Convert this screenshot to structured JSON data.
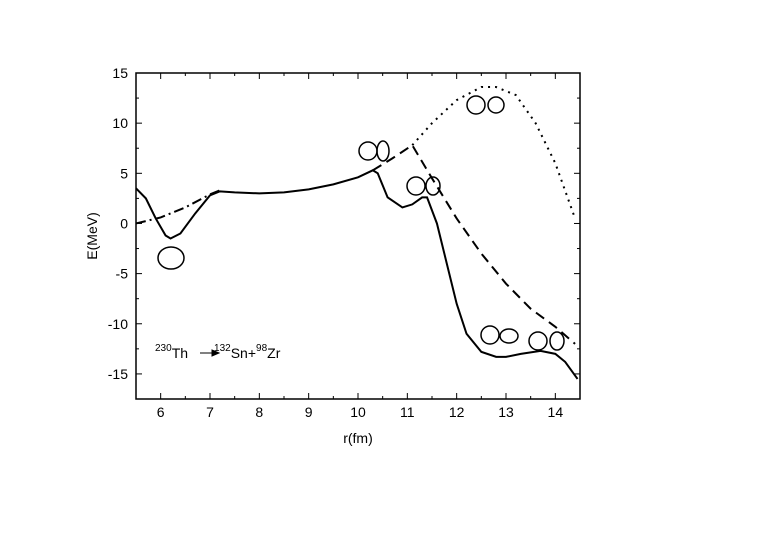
{
  "chart_data": {
    "type": "line",
    "x_label": "r(fm)",
    "y_label": "E(MeV)",
    "annotation": {
      "parent_mass": "230",
      "parent": "Th",
      "frag1_mass": "132",
      "frag1": "Sn+",
      "frag2_mass": "98",
      "frag2": "Zr"
    },
    "xlim": [
      5.5,
      14.5
    ],
    "xticks": [
      6,
      7,
      8,
      9,
      10,
      11,
      12,
      13,
      14
    ],
    "ylim": [
      -17.5,
      15
    ],
    "yticks": [
      -15,
      -10,
      -5,
      0,
      5,
      10,
      15
    ],
    "series": [
      {
        "style": "solid",
        "color": "#000000",
        "x": [
          5.5,
          5.7,
          5.9,
          6.1,
          6.2,
          6.4,
          6.7,
          7.0,
          7.2,
          7.5,
          8,
          8.5,
          9,
          9.5,
          10,
          10.3,
          10.4,
          10.6,
          10.9,
          11.1,
          11.3,
          11.4,
          11.6,
          11.8,
          12,
          12.2,
          12.5,
          12.8,
          13,
          13.3,
          13.7,
          14.0,
          14.2,
          14.45
        ],
        "values": [
          3.5,
          2.5,
          0.5,
          -1.2,
          -1.5,
          -1,
          1,
          2.8,
          3.2,
          3.1,
          3.0,
          3.1,
          3.4,
          3.9,
          4.6,
          5.3,
          5.0,
          2.6,
          1.6,
          1.9,
          2.6,
          2.6,
          0,
          -4,
          -8,
          -11,
          -12.8,
          -13.3,
          -13.3,
          -13.0,
          -12.7,
          -13,
          -13.8,
          -15.5
        ]
      },
      {
        "style": "dashed",
        "color": "#000000",
        "x": [
          10.3,
          10.7,
          11.1,
          11.5,
          12,
          12.5,
          13,
          13.5,
          14,
          14.4
        ],
        "values": [
          5.3,
          6.5,
          7.8,
          4.5,
          0.5,
          -3,
          -6,
          -8.5,
          -10.3,
          -12
        ]
      },
      {
        "style": "dotted",
        "color": "#000000",
        "x": [
          11.1,
          11.5,
          12,
          12.5,
          12.8,
          13.2,
          13.6,
          14,
          14.4
        ],
        "values": [
          7.8,
          10,
          12.3,
          13.6,
          13.6,
          12.8,
          10,
          6,
          0.5
        ]
      },
      {
        "style": "dashdot",
        "color": "#000000",
        "x": [
          5.5,
          6,
          6.5,
          7,
          7.2
        ],
        "values": [
          0,
          0.6,
          1.6,
          2.9,
          3.3
        ]
      }
    ]
  }
}
